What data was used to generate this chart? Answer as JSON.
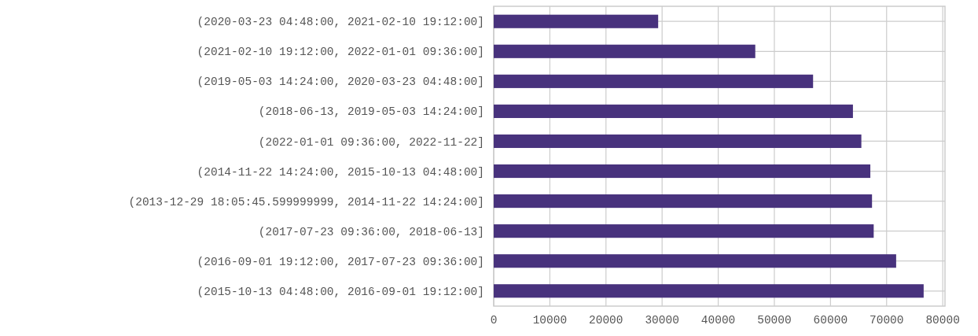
{
  "chart_data": {
    "type": "bar",
    "orientation": "horizontal",
    "categories": [
      "(2020-03-23 04:48:00, 2021-02-10 19:12:00]",
      "(2021-02-10 19:12:00, 2022-01-01 09:36:00]",
      "(2019-05-03 14:24:00, 2020-03-23 04:48:00]",
      "(2018-06-13, 2019-05-03 14:24:00]",
      "(2022-01-01 09:36:00, 2022-11-22]",
      "(2014-11-22 14:24:00, 2015-10-13 04:48:00]",
      "(2013-12-29 18:05:45.599999999, 2014-11-22 14:24:00]",
      "(2017-07-23 09:36:00, 2018-06-13]",
      "(2016-09-01 19:12:00, 2017-07-23 09:36:00]",
      "(2015-10-13 04:48:00, 2016-09-01 19:12:00]"
    ],
    "series": [
      {
        "color": "#48327d",
        "values": [
          29300,
          46600,
          56900,
          64000,
          65500,
          67100,
          67400,
          67700,
          71700,
          76600
        ]
      }
    ],
    "xlim": [
      0,
      80400
    ],
    "xticks": [
      0,
      10000,
      20000,
      30000,
      40000,
      50000,
      60000,
      70000,
      80000
    ],
    "grid": true
  }
}
